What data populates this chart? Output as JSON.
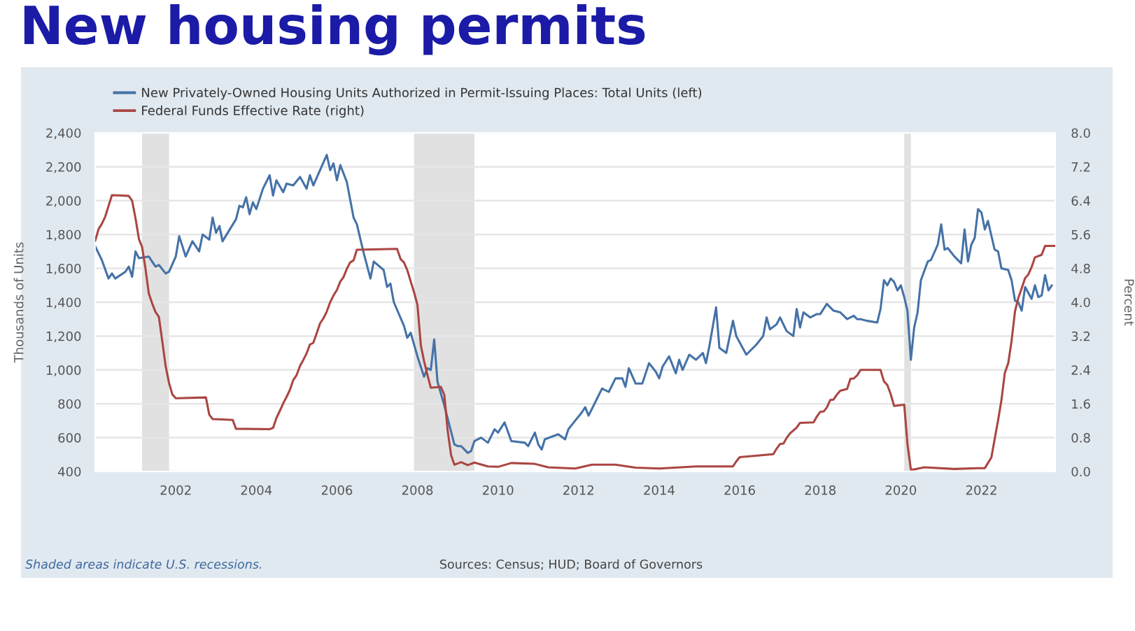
{
  "chart_data": {
    "type": "line",
    "title": "New housing permits",
    "ylabel": "Thousands of Units",
    "y2label": "Percent",
    "annotations": [
      "Shaded areas indicate U.S. recessions.",
      "Sources: Census; HUD; Board of Governors"
    ],
    "xlim": [
      "2000-01",
      "2023-11"
    ],
    "xticks": [
      "2002",
      "2004",
      "2006",
      "2008",
      "2010",
      "2012",
      "2014",
      "2016",
      "2018",
      "2020",
      "2022"
    ],
    "ylim": [
      400,
      2400
    ],
    "yticks": [
      400,
      600,
      800,
      {
        "value": 1000,
        "label": "1,000"
      },
      {
        "value": 1200,
        "label": "1,200"
      },
      {
        "value": 1400,
        "label": "1,400"
      },
      {
        "value": 1600,
        "label": "1,600"
      },
      {
        "value": 1800,
        "label": "1,800"
      },
      {
        "value": 2000,
        "label": "2,000"
      },
      {
        "value": 2200,
        "label": "2,200"
      },
      {
        "value": 2400,
        "label": "2,400"
      }
    ],
    "y2lim": [
      0,
      8
    ],
    "y2ticks": [
      {
        "value": 0,
        "label": "0.0"
      },
      0.8,
      1.6,
      2.4,
      3.2,
      {
        "value": 4,
        "label": "4.0"
      },
      4.8,
      5.6,
      6.4,
      7.2,
      {
        "value": 8,
        "label": "8.0"
      }
    ],
    "grid": "y",
    "legend": "top left",
    "bands": [
      {
        "axis": "x",
        "from": "2001-03",
        "to": "2001-11",
        "color": "#e1e1e1"
      },
      {
        "axis": "x",
        "from": "2007-12",
        "to": "2009-06",
        "color": "#e1e1e1"
      },
      {
        "axis": "x",
        "from": "2020-02",
        "to": "2020-04",
        "color": "#e1e1e1"
      }
    ],
    "series": [
      {
        "name": "New Privately-Owned Housing Units Authorized in Permit-Issuing Places: Total Units (left)",
        "color": "#4572a7",
        "x": [
          "2000-01",
          "2000-03",
          "2000-05",
          "2000-06",
          "2000-07",
          "2000-10",
          "2000-11",
          "2000-12",
          "2001-01",
          "2001-02",
          "2001-05",
          "2001-07",
          "2001-08",
          "2001-10",
          "2001-11",
          "2002-01",
          "2002-02",
          "2002-04",
          "2002-06",
          "2002-08",
          "2002-09",
          "2002-11",
          "2002-12",
          "2003-01",
          "2003-02",
          "2003-03",
          "2003-07",
          "2003-08",
          "2003-09",
          "2003-10",
          "2003-11",
          "2003-12",
          "2004-01",
          "2004-03",
          "2004-05",
          "2004-06",
          "2004-07",
          "2004-09",
          "2004-10",
          "2004-12",
          "2005-02",
          "2005-04",
          "2005-05",
          "2005-06",
          "2005-10",
          "2005-11",
          "2005-12",
          "2006-01",
          "2006-02",
          "2006-04",
          "2006-06",
          "2006-07",
          "2006-09",
          "2006-11",
          "2006-12",
          "2007-03",
          "2007-04",
          "2007-05",
          "2007-06",
          "2007-09",
          "2007-10",
          "2007-11",
          "2008-01",
          "2008-03",
          "2008-04",
          "2008-05",
          "2008-06",
          "2008-07",
          "2008-09",
          "2008-12",
          "2009-01",
          "2009-02",
          "2009-04",
          "2009-05",
          "2009-06",
          "2009-08",
          "2009-10",
          "2009-12",
          "2010-01",
          "2010-03",
          "2010-05",
          "2010-09",
          "2010-10",
          "2010-12",
          "2011-01",
          "2011-02",
          "2011-03",
          "2011-07",
          "2011-09",
          "2011-10",
          "2011-12",
          "2012-02",
          "2012-03",
          "2012-04",
          "2012-06",
          "2012-08",
          "2012-10",
          "2012-12",
          "2013-02",
          "2013-03",
          "2013-04",
          "2013-06",
          "2013-08",
          "2013-10",
          "2013-12",
          "2014-01",
          "2014-02",
          "2014-04",
          "2014-06",
          "2014-07",
          "2014-08",
          "2014-10",
          "2014-12",
          "2015-02",
          "2015-03",
          "2015-04",
          "2015-06",
          "2015-07",
          "2015-09",
          "2015-11",
          "2015-12",
          "2016-03",
          "2016-06",
          "2016-08",
          "2016-09",
          "2016-10",
          "2016-12",
          "2017-01",
          "2017-03",
          "2017-05",
          "2017-06",
          "2017-07",
          "2017-08",
          "2017-10",
          "2017-12",
          "2018-01",
          "2018-03",
          "2018-05",
          "2018-07",
          "2018-09",
          "2018-11",
          "2018-12",
          "2019-01",
          "2019-03",
          "2019-06",
          "2019-07",
          "2019-08",
          "2019-09",
          "2019-10",
          "2019-11",
          "2019-12",
          "2020-01",
          "2020-02",
          "2020-03",
          "2020-04",
          "2020-05",
          "2020-06",
          "2020-07",
          "2020-09",
          "2020-10",
          "2020-12",
          "2021-01",
          "2021-02",
          "2021-03",
          "2021-05",
          "2021-07",
          "2021-08",
          "2021-09",
          "2021-10",
          "2021-11",
          "2021-12",
          "2022-01",
          "2022-02",
          "2022-03",
          "2022-05",
          "2022-06",
          "2022-07",
          "2022-09",
          "2022-10",
          "2022-11",
          "2022-12",
          "2023-01",
          "2023-02",
          "2023-04",
          "2023-05",
          "2023-06",
          "2023-07",
          "2023-08",
          "2023-09",
          "2023-10"
        ],
        "values": [
          1730,
          1650,
          1540,
          1570,
          1540,
          1580,
          1610,
          1550,
          1700,
          1660,
          1670,
          1610,
          1620,
          1570,
          1580,
          1670,
          1790,
          1670,
          1760,
          1700,
          1800,
          1770,
          1900,
          1810,
          1850,
          1760,
          1890,
          1970,
          1960,
          2020,
          1920,
          1990,
          1950,
          2070,
          2150,
          2030,
          2120,
          2050,
          2100,
          2090,
          2140,
          2070,
          2150,
          2090,
          2270,
          2180,
          2220,
          2120,
          2210,
          2110,
          1900,
          1860,
          1690,
          1540,
          1640,
          1590,
          1490,
          1510,
          1400,
          1260,
          1190,
          1220,
          1080,
          960,
          1010,
          1000,
          1180,
          930,
          790,
          560,
          550,
          550,
          510,
          520,
          580,
          600,
          570,
          650,
          630,
          690,
          580,
          570,
          550,
          630,
          560,
          530,
          590,
          620,
          590,
          650,
          700,
          750,
          780,
          730,
          810,
          890,
          870,
          950,
          950,
          900,
          1010,
          920,
          920,
          1040,
          990,
          950,
          1020,
          1080,
          980,
          1060,
          1000,
          1090,
          1060,
          1100,
          1040,
          1140,
          1370,
          1130,
          1100,
          1290,
          1200,
          1090,
          1150,
          1200,
          1310,
          1240,
          1270,
          1310,
          1230,
          1200,
          1360,
          1250,
          1340,
          1310,
          1330,
          1330,
          1390,
          1350,
          1340,
          1300,
          1320,
          1300,
          1300,
          1290,
          1280,
          1360,
          1530,
          1500,
          1540,
          1520,
          1470,
          1500,
          1430,
          1350,
          1060,
          1250,
          1340,
          1530,
          1640,
          1650,
          1740,
          1860,
          1710,
          1720,
          1670,
          1630,
          1830,
          1640,
          1740,
          1780,
          1950,
          1930,
          1830,
          1880,
          1710,
          1700,
          1600,
          1590,
          1530,
          1410,
          1400,
          1350,
          1490,
          1420,
          1500,
          1430,
          1440,
          1560,
          1470,
          1500
        ]
      },
      {
        "name": "Federal Funds Effective Rate (right)",
        "color": "#aa4643",
        "axis": "y2",
        "x": [
          "2000-01",
          "2000-02",
          "2000-03",
          "2000-04",
          "2000-05",
          "2000-06",
          "2000-09",
          "2000-11",
          "2000-12",
          "2001-01",
          "2001-02",
          "2001-03",
          "2001-04",
          "2001-05",
          "2001-06",
          "2001-07",
          "2001-08",
          "2001-09",
          "2001-10",
          "2001-11",
          "2001-12",
          "2002-01",
          "2002-10",
          "2002-11",
          "2002-12",
          "2003-06",
          "2003-07",
          "2004-05",
          "2004-06",
          "2004-07",
          "2004-08",
          "2004-09",
          "2004-10",
          "2004-11",
          "2004-12",
          "2005-01",
          "2005-02",
          "2005-03",
          "2005-04",
          "2005-05",
          "2005-06",
          "2005-07",
          "2005-08",
          "2005-09",
          "2005-10",
          "2005-11",
          "2005-12",
          "2006-01",
          "2006-02",
          "2006-03",
          "2006-04",
          "2006-05",
          "2006-06",
          "2006-07",
          "2007-07",
          "2007-08",
          "2007-09",
          "2007-10",
          "2007-11",
          "2007-12",
          "2008-01",
          "2008-02",
          "2008-03",
          "2008-04",
          "2008-05",
          "2008-08",
          "2008-09",
          "2008-10",
          "2008-11",
          "2008-12",
          "2009-02",
          "2009-04",
          "2009-06",
          "2009-10",
          "2010-01",
          "2010-05",
          "2010-12",
          "2011-04",
          "2011-12",
          "2012-05",
          "2012-12",
          "2013-06",
          "2014-01",
          "2014-12",
          "2015-11",
          "2015-12",
          "2016-01",
          "2016-11",
          "2016-12",
          "2017-01",
          "2017-02",
          "2017-03",
          "2017-04",
          "2017-06",
          "2017-07",
          "2017-11",
          "2017-12",
          "2018-01",
          "2018-02",
          "2018-03",
          "2018-04",
          "2018-05",
          "2018-06",
          "2018-07",
          "2018-09",
          "2018-10",
          "2018-11",
          "2018-12",
          "2019-01",
          "2019-07",
          "2019-08",
          "2019-09",
          "2019-10",
          "2019-11",
          "2020-02",
          "2020-03",
          "2020-04",
          "2020-05",
          "2020-08",
          "2021-05",
          "2021-12",
          "2022-02",
          "2022-03",
          "2022-04",
          "2022-05",
          "2022-06",
          "2022-07",
          "2022-08",
          "2022-09",
          "2022-10",
          "2022-11",
          "2022-12",
          "2023-01",
          "2023-02",
          "2023-03",
          "2023-04",
          "2023-05",
          "2023-07",
          "2023-08",
          "2023-11"
        ],
        "values": [
          5.45,
          5.73,
          5.85,
          6.02,
          6.27,
          6.53,
          6.52,
          6.51,
          6.4,
          5.98,
          5.49,
          5.31,
          4.8,
          4.21,
          3.97,
          3.77,
          3.65,
          3.07,
          2.49,
          2.09,
          1.82,
          1.73,
          1.75,
          1.34,
          1.24,
          1.22,
          1.01,
          1.0,
          1.03,
          1.26,
          1.43,
          1.61,
          1.76,
          1.93,
          2.16,
          2.28,
          2.5,
          2.63,
          2.79,
          3.0,
          3.04,
          3.26,
          3.5,
          3.62,
          3.78,
          4.0,
          4.16,
          4.29,
          4.49,
          4.59,
          4.79,
          4.94,
          4.99,
          5.24,
          5.26,
          5.02,
          4.94,
          4.76,
          4.49,
          4.24,
          3.94,
          2.98,
          2.61,
          2.28,
          1.98,
          2.0,
          1.81,
          0.97,
          0.39,
          0.16,
          0.22,
          0.15,
          0.21,
          0.12,
          0.11,
          0.2,
          0.18,
          0.1,
          0.07,
          0.16,
          0.16,
          0.09,
          0.07,
          0.12,
          0.12,
          0.24,
          0.34,
          0.41,
          0.54,
          0.65,
          0.66,
          0.79,
          0.9,
          1.04,
          1.15,
          1.16,
          1.3,
          1.41,
          1.42,
          1.51,
          1.69,
          1.7,
          1.82,
          1.91,
          1.95,
          2.19,
          2.2,
          2.27,
          2.4,
          2.4,
          2.13,
          2.04,
          1.83,
          1.55,
          1.58,
          0.65,
          0.05,
          0.05,
          0.1,
          0.06,
          0.08,
          0.08,
          0.2,
          0.33,
          0.77,
          1.21,
          1.68,
          2.33,
          2.56,
          3.08,
          3.78,
          4.1,
          4.33,
          4.57,
          4.65,
          4.83,
          5.06,
          5.12,
          5.33,
          5.33
        ]
      }
    ]
  }
}
